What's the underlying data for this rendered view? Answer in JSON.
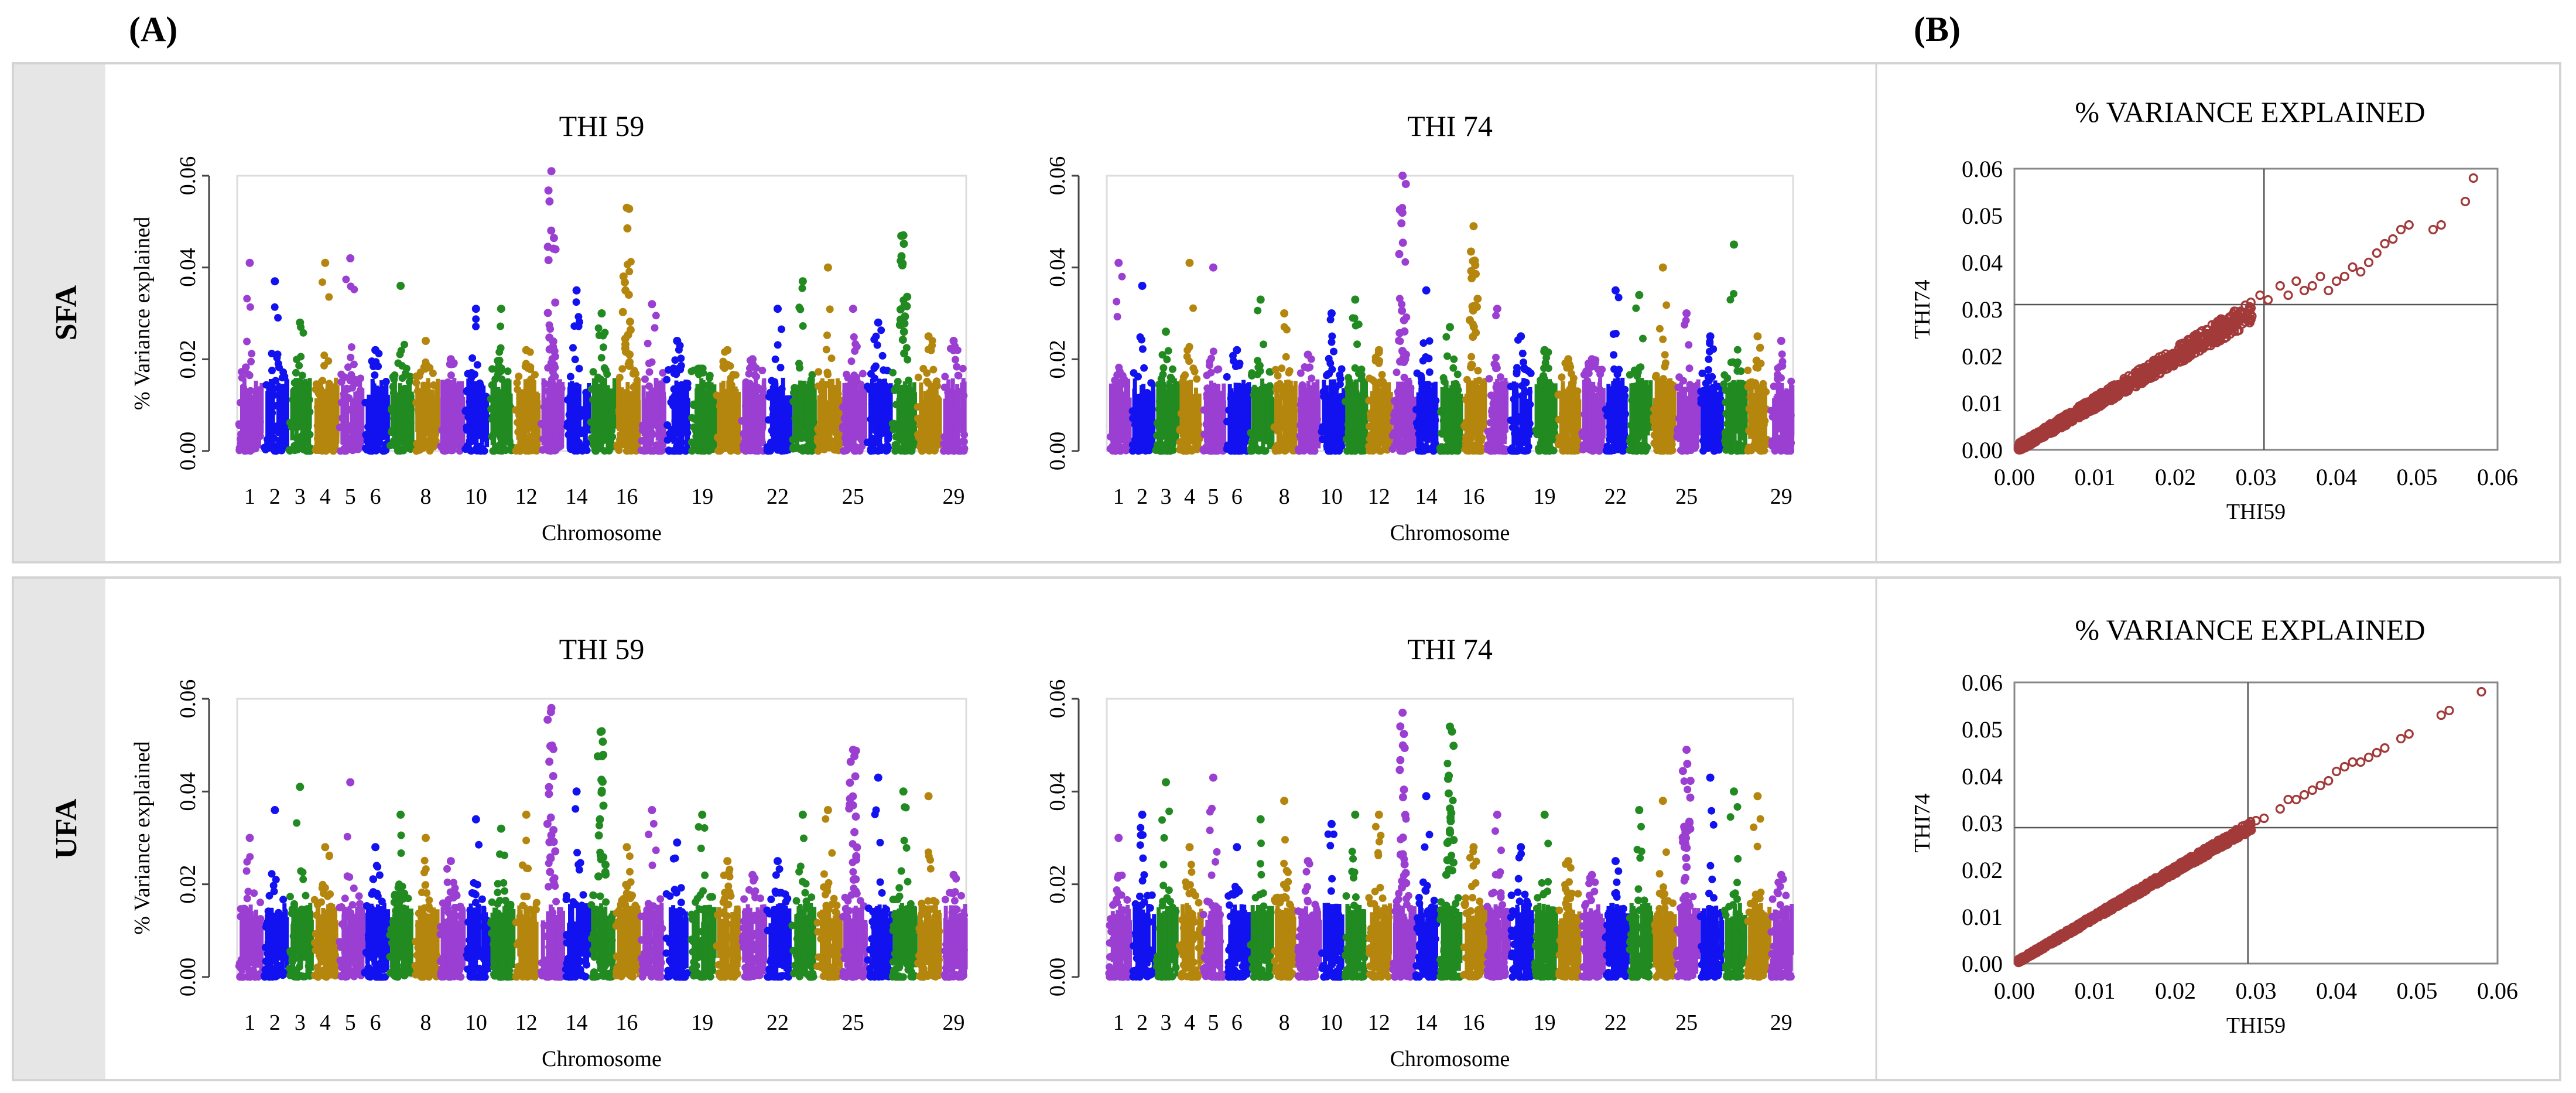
{
  "figure": {
    "panel_a_label": "(A)",
    "panel_b_label": "(B)",
    "rows": [
      "SFA",
      "UFA"
    ]
  },
  "colors": {
    "chromosome_cycle": [
      "#9b3fd3",
      "#1212f0",
      "#218a21",
      "#b5860d"
    ],
    "scatter_point": "#a33a3a",
    "row_strip": "#e6e6e6"
  },
  "chart_data": [
    {
      "type": "scatter",
      "subtype": "manhattan",
      "row": "SFA",
      "title": "THI 59",
      "xlabel": "Chromosome",
      "ylabel": "% Variance explained",
      "ylim": [
        0,
        0.06
      ],
      "yticks": [
        "0.00",
        "0.02",
        "0.04",
        "0.06"
      ],
      "xticks": [
        "1",
        "2",
        "3",
        "4",
        "5",
        "6",
        "8",
        "10",
        "12",
        "14",
        "16",
        "19",
        "22",
        "25",
        "29"
      ],
      "chromosomes": 29,
      "baseline_max": 0.018,
      "peaks": [
        {
          "chr": 1,
          "value": 0.041
        },
        {
          "chr": 2,
          "value": 0.037
        },
        {
          "chr": 3,
          "value": 0.028
        },
        {
          "chr": 4,
          "value": 0.041
        },
        {
          "chr": 5,
          "value": 0.042
        },
        {
          "chr": 6,
          "value": 0.022
        },
        {
          "chr": 7,
          "value": 0.036
        },
        {
          "chr": 8,
          "value": 0.024
        },
        {
          "chr": 9,
          "value": 0.02
        },
        {
          "chr": 10,
          "value": 0.031
        },
        {
          "chr": 11,
          "value": 0.031
        },
        {
          "chr": 12,
          "value": 0.022
        },
        {
          "chr": 13,
          "value": 0.061
        },
        {
          "chr": 14,
          "value": 0.035
        },
        {
          "chr": 15,
          "value": 0.03
        },
        {
          "chr": 16,
          "value": 0.053
        },
        {
          "chr": 17,
          "value": 0.032
        },
        {
          "chr": 18,
          "value": 0.024
        },
        {
          "chr": 19,
          "value": 0.018
        },
        {
          "chr": 20,
          "value": 0.022
        },
        {
          "chr": 21,
          "value": 0.02
        },
        {
          "chr": 22,
          "value": 0.031
        },
        {
          "chr": 23,
          "value": 0.037
        },
        {
          "chr": 24,
          "value": 0.04
        },
        {
          "chr": 25,
          "value": 0.031
        },
        {
          "chr": 26,
          "value": 0.028
        },
        {
          "chr": 27,
          "value": 0.047
        },
        {
          "chr": 28,
          "value": 0.025
        },
        {
          "chr": 29,
          "value": 0.024
        }
      ]
    },
    {
      "type": "scatter",
      "subtype": "manhattan",
      "row": "SFA",
      "title": "THI 74",
      "xlabel": "Chromosome",
      "ylabel": "",
      "ylim": [
        0,
        0.06
      ],
      "yticks": [
        "0.00",
        "0.02",
        "0.04",
        "0.06"
      ],
      "xticks": [
        "1",
        "2",
        "3",
        "4",
        "5",
        "6",
        "8",
        "10",
        "12",
        "14",
        "16",
        "19",
        "22",
        "25",
        "29"
      ],
      "chromosomes": 29,
      "baseline_max": 0.018,
      "peaks": [
        {
          "chr": 1,
          "value": 0.041
        },
        {
          "chr": 2,
          "value": 0.036
        },
        {
          "chr": 3,
          "value": 0.026
        },
        {
          "chr": 4,
          "value": 0.041
        },
        {
          "chr": 5,
          "value": 0.04
        },
        {
          "chr": 6,
          "value": 0.022
        },
        {
          "chr": 7,
          "value": 0.033
        },
        {
          "chr": 8,
          "value": 0.03
        },
        {
          "chr": 9,
          "value": 0.021
        },
        {
          "chr": 10,
          "value": 0.03
        },
        {
          "chr": 11,
          "value": 0.033
        },
        {
          "chr": 12,
          "value": 0.022
        },
        {
          "chr": 13,
          "value": 0.06
        },
        {
          "chr": 14,
          "value": 0.035
        },
        {
          "chr": 15,
          "value": 0.027
        },
        {
          "chr": 16,
          "value": 0.049
        },
        {
          "chr": 17,
          "value": 0.031
        },
        {
          "chr": 18,
          "value": 0.025
        },
        {
          "chr": 19,
          "value": 0.022
        },
        {
          "chr": 20,
          "value": 0.02
        },
        {
          "chr": 21,
          "value": 0.02
        },
        {
          "chr": 22,
          "value": 0.035
        },
        {
          "chr": 23,
          "value": 0.034
        },
        {
          "chr": 24,
          "value": 0.04
        },
        {
          "chr": 25,
          "value": 0.03
        },
        {
          "chr": 26,
          "value": 0.025
        },
        {
          "chr": 27,
          "value": 0.045
        },
        {
          "chr": 28,
          "value": 0.025
        },
        {
          "chr": 29,
          "value": 0.024
        }
      ]
    },
    {
      "type": "scatter",
      "subtype": "manhattan",
      "row": "UFA",
      "title": "THI 59",
      "xlabel": "Chromosome",
      "ylabel": "% Variance explained",
      "ylim": [
        0,
        0.06
      ],
      "yticks": [
        "0.00",
        "0.02",
        "0.04",
        "0.06"
      ],
      "xticks": [
        "1",
        "2",
        "3",
        "4",
        "5",
        "6",
        "8",
        "10",
        "12",
        "14",
        "16",
        "19",
        "22",
        "25",
        "29"
      ],
      "chromosomes": 29,
      "baseline_max": 0.018,
      "peaks": [
        {
          "chr": 1,
          "value": 0.03
        },
        {
          "chr": 2,
          "value": 0.036
        },
        {
          "chr": 3,
          "value": 0.041
        },
        {
          "chr": 4,
          "value": 0.028
        },
        {
          "chr": 5,
          "value": 0.042
        },
        {
          "chr": 6,
          "value": 0.028
        },
        {
          "chr": 7,
          "value": 0.035
        },
        {
          "chr": 8,
          "value": 0.03
        },
        {
          "chr": 9,
          "value": 0.025
        },
        {
          "chr": 10,
          "value": 0.034
        },
        {
          "chr": 11,
          "value": 0.032
        },
        {
          "chr": 12,
          "value": 0.035
        },
        {
          "chr": 13,
          "value": 0.058
        },
        {
          "chr": 14,
          "value": 0.04
        },
        {
          "chr": 15,
          "value": 0.053
        },
        {
          "chr": 16,
          "value": 0.028
        },
        {
          "chr": 17,
          "value": 0.036
        },
        {
          "chr": 18,
          "value": 0.029
        },
        {
          "chr": 19,
          "value": 0.035
        },
        {
          "chr": 20,
          "value": 0.025
        },
        {
          "chr": 21,
          "value": 0.022
        },
        {
          "chr": 22,
          "value": 0.025
        },
        {
          "chr": 23,
          "value": 0.035
        },
        {
          "chr": 24,
          "value": 0.036
        },
        {
          "chr": 25,
          "value": 0.049
        },
        {
          "chr": 26,
          "value": 0.043
        },
        {
          "chr": 27,
          "value": 0.04
        },
        {
          "chr": 28,
          "value": 0.039
        },
        {
          "chr": 29,
          "value": 0.022
        }
      ]
    },
    {
      "type": "scatter",
      "subtype": "manhattan",
      "row": "UFA",
      "title": "THI 74",
      "xlabel": "Chromosome",
      "ylabel": "",
      "ylim": [
        0,
        0.06
      ],
      "yticks": [
        "0.00",
        "0.02",
        "0.04",
        "0.06"
      ],
      "xticks": [
        "1",
        "2",
        "3",
        "4",
        "5",
        "6",
        "8",
        "10",
        "12",
        "14",
        "16",
        "19",
        "22",
        "25",
        "29"
      ],
      "chromosomes": 29,
      "baseline_max": 0.018,
      "peaks": [
        {
          "chr": 1,
          "value": 0.03
        },
        {
          "chr": 2,
          "value": 0.035
        },
        {
          "chr": 3,
          "value": 0.042
        },
        {
          "chr": 4,
          "value": 0.028
        },
        {
          "chr": 5,
          "value": 0.043
        },
        {
          "chr": 6,
          "value": 0.028
        },
        {
          "chr": 7,
          "value": 0.034
        },
        {
          "chr": 8,
          "value": 0.038
        },
        {
          "chr": 9,
          "value": 0.025
        },
        {
          "chr": 10,
          "value": 0.033
        },
        {
          "chr": 11,
          "value": 0.035
        },
        {
          "chr": 12,
          "value": 0.035
        },
        {
          "chr": 13,
          "value": 0.057
        },
        {
          "chr": 14,
          "value": 0.039
        },
        {
          "chr": 15,
          "value": 0.054
        },
        {
          "chr": 16,
          "value": 0.028
        },
        {
          "chr": 17,
          "value": 0.035
        },
        {
          "chr": 18,
          "value": 0.028
        },
        {
          "chr": 19,
          "value": 0.035
        },
        {
          "chr": 20,
          "value": 0.025
        },
        {
          "chr": 21,
          "value": 0.022
        },
        {
          "chr": 22,
          "value": 0.025
        },
        {
          "chr": 23,
          "value": 0.036
        },
        {
          "chr": 24,
          "value": 0.038
        },
        {
          "chr": 25,
          "value": 0.049
        },
        {
          "chr": 26,
          "value": 0.043
        },
        {
          "chr": 27,
          "value": 0.04
        },
        {
          "chr": 28,
          "value": 0.039
        },
        {
          "chr": 29,
          "value": 0.022
        }
      ]
    },
    {
      "type": "scatter",
      "row": "SFA",
      "title": "% VARIANCE EXPLAINED",
      "xlabel": "THI59",
      "ylabel": "THI74",
      "xlim": [
        0,
        0.06
      ],
      "ylim": [
        0,
        0.06
      ],
      "xticks": [
        "0.00",
        "0.01",
        "0.02",
        "0.03",
        "0.04",
        "0.05",
        "0.06"
      ],
      "yticks": [
        "0.00",
        "0.01",
        "0.02",
        "0.03",
        "0.04",
        "0.05",
        "0.06"
      ],
      "reference_lines": {
        "x": 0.031,
        "y": 0.031
      },
      "spread": 0.0014,
      "outliers": [
        [
          0.0305,
          0.033
        ],
        [
          0.0315,
          0.032
        ],
        [
          0.033,
          0.035
        ],
        [
          0.034,
          0.033
        ],
        [
          0.035,
          0.036
        ],
        [
          0.036,
          0.034
        ],
        [
          0.037,
          0.035
        ],
        [
          0.038,
          0.037
        ],
        [
          0.039,
          0.034
        ],
        [
          0.04,
          0.036
        ],
        [
          0.041,
          0.037
        ],
        [
          0.042,
          0.039
        ],
        [
          0.043,
          0.038
        ],
        [
          0.044,
          0.04
        ],
        [
          0.045,
          0.042
        ],
        [
          0.046,
          0.044
        ],
        [
          0.047,
          0.045
        ],
        [
          0.048,
          0.047
        ],
        [
          0.049,
          0.048
        ],
        [
          0.052,
          0.047
        ],
        [
          0.053,
          0.048
        ],
        [
          0.056,
          0.053
        ],
        [
          0.057,
          0.058
        ]
      ]
    },
    {
      "type": "scatter",
      "row": "UFA",
      "title": "% VARIANCE EXPLAINED",
      "xlabel": "THI59",
      "ylabel": "THI74",
      "xlim": [
        0,
        0.06
      ],
      "ylim": [
        0,
        0.06
      ],
      "xticks": [
        "0.00",
        "0.01",
        "0.02",
        "0.03",
        "0.04",
        "0.05",
        "0.06"
      ],
      "yticks": [
        "0.00",
        "0.01",
        "0.02",
        "0.03",
        "0.04",
        "0.05",
        "0.06"
      ],
      "reference_lines": {
        "x": 0.029,
        "y": 0.029
      },
      "spread": 0.0006,
      "outliers": [
        [
          0.03,
          0.0305
        ],
        [
          0.031,
          0.031
        ],
        [
          0.033,
          0.033
        ],
        [
          0.034,
          0.035
        ],
        [
          0.035,
          0.035
        ],
        [
          0.036,
          0.036
        ],
        [
          0.037,
          0.037
        ],
        [
          0.038,
          0.038
        ],
        [
          0.039,
          0.039
        ],
        [
          0.04,
          0.041
        ],
        [
          0.041,
          0.042
        ],
        [
          0.042,
          0.043
        ],
        [
          0.043,
          0.043
        ],
        [
          0.044,
          0.044
        ],
        [
          0.045,
          0.045
        ],
        [
          0.046,
          0.046
        ],
        [
          0.048,
          0.048
        ],
        [
          0.049,
          0.049
        ],
        [
          0.053,
          0.053
        ],
        [
          0.054,
          0.054
        ],
        [
          0.058,
          0.058
        ]
      ]
    }
  ]
}
